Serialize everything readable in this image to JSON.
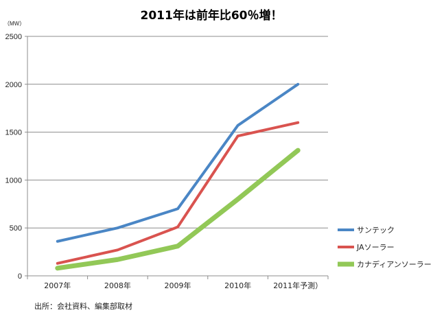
{
  "chart_data": {
    "type": "line",
    "title": "2011年は前年比60％増！",
    "ylabel": "（MW）",
    "source": "出所：会社資料、編集部取材",
    "categories": [
      "2007年",
      "2008年",
      "2009年",
      "2010年",
      "2011年予測）"
    ],
    "ylim": [
      0,
      2500
    ],
    "yticks": [
      0,
      500,
      1000,
      1500,
      2000,
      2500
    ],
    "grid": true,
    "legend_position": "right",
    "series": [
      {
        "name": "サンテック",
        "color": "#4a86c5",
        "values": [
          360,
          500,
          700,
          1570,
          2000
        ]
      },
      {
        "name": "JAソーラー",
        "color": "#d9534f",
        "values": [
          130,
          270,
          510,
          1460,
          1600
        ]
      },
      {
        "name": "カナディアンソーラー",
        "color": "#92c857",
        "values": [
          80,
          170,
          310,
          800,
          1310
        ]
      }
    ]
  }
}
